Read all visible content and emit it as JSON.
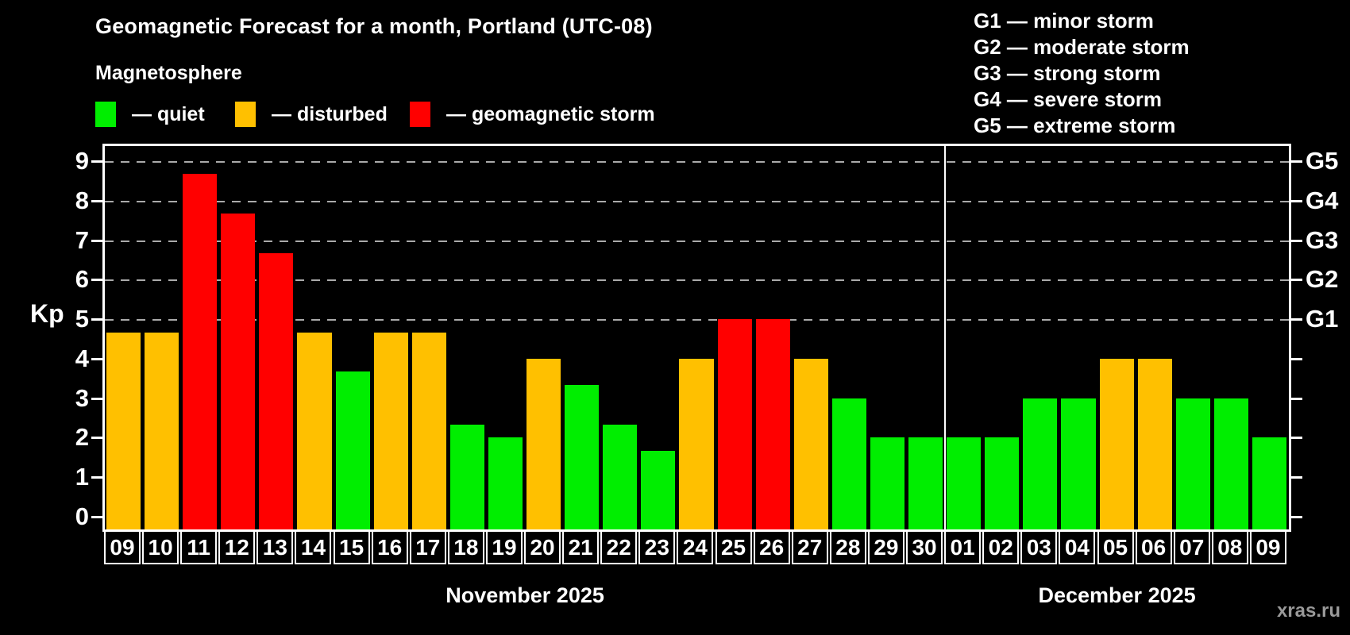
{
  "header": {
    "title": "Geomagnetic Forecast for a month, Portland (UTC-08)",
    "subtitle": "Magnetosphere"
  },
  "legend": {
    "items": [
      {
        "key": "quiet",
        "label": "— quiet"
      },
      {
        "key": "disturbed",
        "label": "— disturbed"
      },
      {
        "key": "storm",
        "label": "— geomagnetic storm"
      }
    ]
  },
  "g_legend": {
    "items": [
      {
        "code": "G1",
        "label": "G1 — minor storm"
      },
      {
        "code": "G2",
        "label": "G2 — moderate storm"
      },
      {
        "code": "G3",
        "label": "G3 — strong storm"
      },
      {
        "code": "G4",
        "label": "G4 — severe storm"
      },
      {
        "code": "G5",
        "label": "G5 — extreme storm"
      }
    ]
  },
  "colors": {
    "quiet": "#00ee00",
    "disturbed": "#ffc000",
    "storm": "#ff0000",
    "background": "#000000",
    "text": "#ffffff",
    "grid": "#aaaaaa",
    "watermark": "#999999"
  },
  "watermark": "xras.ru",
  "chart_data": {
    "type": "bar",
    "title": "Geomagnetic Forecast for a month, Portland (UTC-08)",
    "ylabel": "Kp",
    "ylim": [
      0,
      9
    ],
    "y_ticks": [
      0,
      1,
      2,
      3,
      4,
      5,
      6,
      7,
      8,
      9
    ],
    "right_axis_ticks": [
      {
        "kp": 5,
        "label": "G1"
      },
      {
        "kp": 6,
        "label": "G2"
      },
      {
        "kp": 7,
        "label": "G3"
      },
      {
        "kp": 8,
        "label": "G4"
      },
      {
        "kp": 9,
        "label": "G5"
      }
    ],
    "grid": "dashed horizontal lines at Kp 5-9",
    "legend_position": "top-left and top-right",
    "months": [
      {
        "label": "November 2025",
        "days": 22
      },
      {
        "label": "December 2025",
        "days": 9
      }
    ],
    "series": [
      {
        "name": "Kp forecast",
        "points": [
          {
            "day": "09",
            "month": "November 2025",
            "kp": 4.67,
            "condition": "disturbed"
          },
          {
            "day": "10",
            "month": "November 2025",
            "kp": 4.67,
            "condition": "disturbed"
          },
          {
            "day": "11",
            "month": "November 2025",
            "kp": 8.67,
            "condition": "storm"
          },
          {
            "day": "12",
            "month": "November 2025",
            "kp": 7.67,
            "condition": "storm"
          },
          {
            "day": "13",
            "month": "November 2025",
            "kp": 6.67,
            "condition": "storm"
          },
          {
            "day": "14",
            "month": "November 2025",
            "kp": 4.67,
            "condition": "disturbed"
          },
          {
            "day": "15",
            "month": "November 2025",
            "kp": 3.67,
            "condition": "quiet"
          },
          {
            "day": "16",
            "month": "November 2025",
            "kp": 4.67,
            "condition": "disturbed"
          },
          {
            "day": "17",
            "month": "November 2025",
            "kp": 4.67,
            "condition": "disturbed"
          },
          {
            "day": "18",
            "month": "November 2025",
            "kp": 2.33,
            "condition": "quiet"
          },
          {
            "day": "19",
            "month": "November 2025",
            "kp": 2.0,
            "condition": "quiet"
          },
          {
            "day": "20",
            "month": "November 2025",
            "kp": 4.0,
            "condition": "disturbed"
          },
          {
            "day": "21",
            "month": "November 2025",
            "kp": 3.33,
            "condition": "quiet"
          },
          {
            "day": "22",
            "month": "November 2025",
            "kp": 2.33,
            "condition": "quiet"
          },
          {
            "day": "23",
            "month": "November 2025",
            "kp": 1.67,
            "condition": "quiet"
          },
          {
            "day": "24",
            "month": "November 2025",
            "kp": 4.0,
            "condition": "disturbed"
          },
          {
            "day": "25",
            "month": "November 2025",
            "kp": 5.0,
            "condition": "storm"
          },
          {
            "day": "26",
            "month": "November 2025",
            "kp": 5.0,
            "condition": "storm"
          },
          {
            "day": "27",
            "month": "November 2025",
            "kp": 4.0,
            "condition": "disturbed"
          },
          {
            "day": "28",
            "month": "November 2025",
            "kp": 3.0,
            "condition": "quiet"
          },
          {
            "day": "29",
            "month": "November 2025",
            "kp": 2.0,
            "condition": "quiet"
          },
          {
            "day": "30",
            "month": "November 2025",
            "kp": 2.0,
            "condition": "quiet"
          },
          {
            "day": "01",
            "month": "December 2025",
            "kp": 2.0,
            "condition": "quiet"
          },
          {
            "day": "02",
            "month": "December 2025",
            "kp": 2.0,
            "condition": "quiet"
          },
          {
            "day": "03",
            "month": "December 2025",
            "kp": 3.0,
            "condition": "quiet"
          },
          {
            "day": "04",
            "month": "December 2025",
            "kp": 3.0,
            "condition": "quiet"
          },
          {
            "day": "05",
            "month": "December 2025",
            "kp": 4.0,
            "condition": "disturbed"
          },
          {
            "day": "06",
            "month": "December 2025",
            "kp": 4.0,
            "condition": "disturbed"
          },
          {
            "day": "07",
            "month": "December 2025",
            "kp": 3.0,
            "condition": "quiet"
          },
          {
            "day": "08",
            "month": "December 2025",
            "kp": 3.0,
            "condition": "quiet"
          },
          {
            "day": "09",
            "month": "December 2025",
            "kp": 2.0,
            "condition": "quiet"
          }
        ]
      }
    ]
  }
}
